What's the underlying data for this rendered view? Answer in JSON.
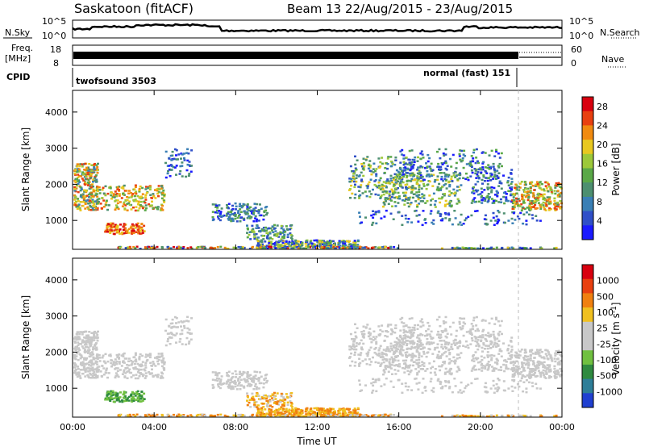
{
  "header": {
    "station": "Saskatoon (fitACF)",
    "beam_date": "Beam 13  22/Aug/2015 - 23/Aug/2015"
  },
  "top_panels": {
    "nsky_label": "N.Sky",
    "nsearch_label": "N.Search",
    "freq_label_1": "Freq.",
    "freq_label_2": "[MHz]",
    "nave_label": "Nave",
    "cpid_label": "CPID",
    "cpid_left": "twofsound 3503",
    "cpid_right": "normal (fast) 151",
    "noise_ticks": [
      "10^5",
      "10^0"
    ],
    "freq_ticks": [
      "18",
      "8"
    ],
    "nave_ticks": [
      "60",
      "0"
    ]
  },
  "colors": {
    "power_scale": [
      "#1a1aff",
      "#2f4fc8",
      "#3a7fb5",
      "#4d8f70",
      "#5aa848",
      "#9cc83a",
      "#e8c820",
      "#f08a10",
      "#e84010",
      "#d8000f"
    ],
    "velocity_scale": [
      "#2040d0",
      "#2e7e98",
      "#2f8a40",
      "#70c040",
      "#c8c8c8",
      "#c8c8c8",
      "#f0c020",
      "#f08010",
      "#e84010",
      "#d8000f"
    ]
  },
  "chart_data": [
    {
      "type": "heatmap",
      "title": "",
      "xlabel": "",
      "ylabel": "Slant Range [km]",
      "x_ticks": [
        "00:00",
        "04:00",
        "08:00",
        "12:00",
        "16:00",
        "20:00",
        "00:00"
      ],
      "y_ticks": [
        "1000",
        "2000",
        "3000",
        "4000"
      ],
      "ylim": [
        200,
        4600
      ],
      "colorbar_label": "Power [dB]",
      "colorbar_ticks": [
        "4",
        "8",
        "12",
        "16",
        "20",
        "24",
        "28"
      ],
      "colorbar_range": [
        0,
        30
      ]
    },
    {
      "type": "heatmap",
      "title": "",
      "xlabel": "Time UT",
      "ylabel": "Slant Range [km]",
      "x_ticks": [
        "00:00",
        "04:00",
        "08:00",
        "12:00",
        "16:00",
        "20:00",
        "00:00"
      ],
      "y_ticks": [
        "1000",
        "2000",
        "3000",
        "4000"
      ],
      "ylim": [
        200,
        4600
      ],
      "colorbar_label": "Velocity [m s-1]",
      "colorbar_ticks": [
        "1000",
        "500",
        "100",
        "25",
        "-25",
        "-100",
        "-500",
        "-1000"
      ]
    }
  ]
}
